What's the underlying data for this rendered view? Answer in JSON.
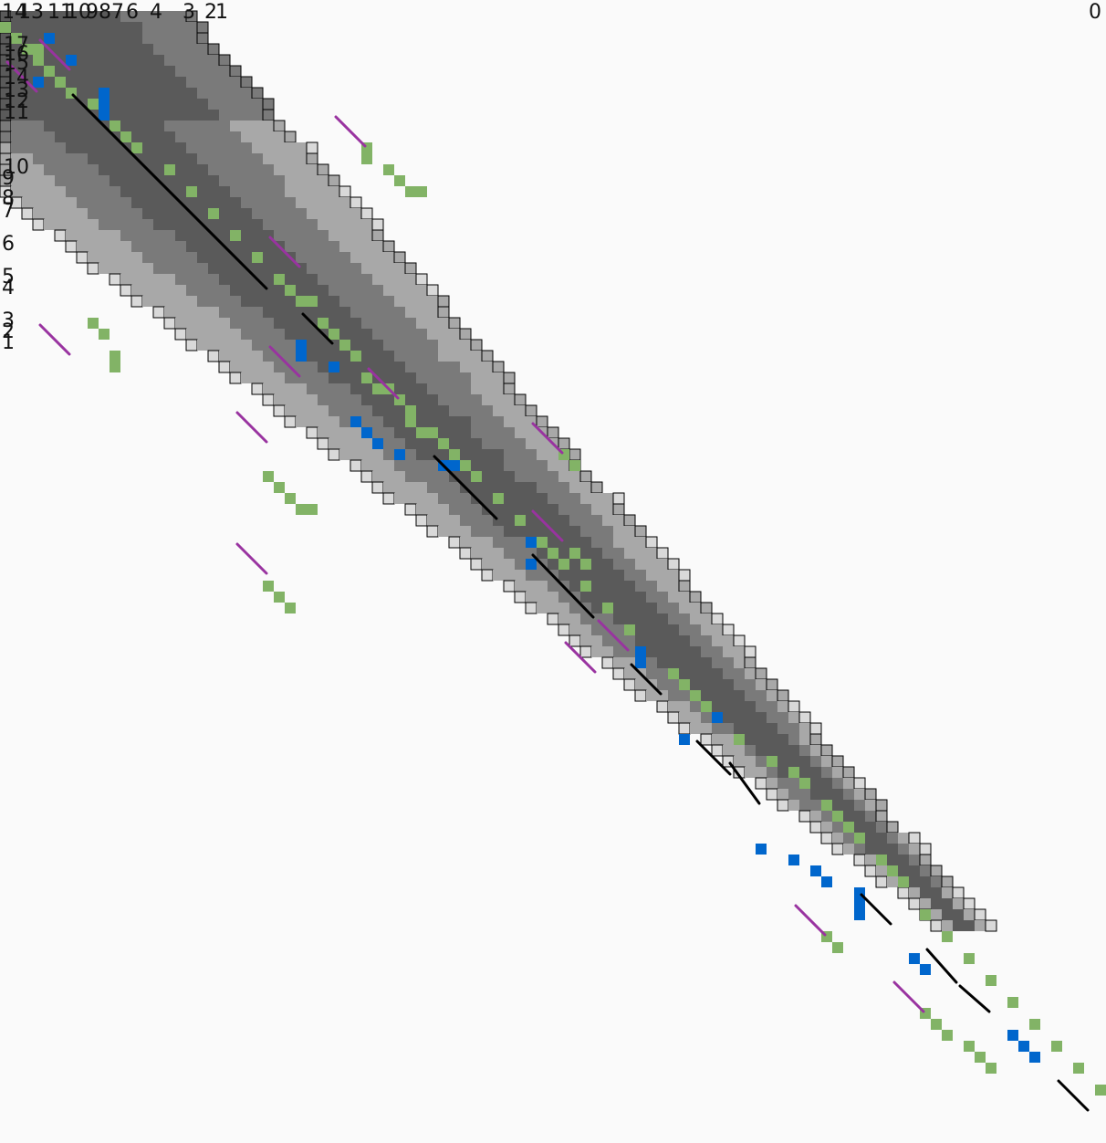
{
  "top_labels": [
    "14",
    "13",
    "11",
    "10",
    "9",
    "8",
    "7",
    "6",
    "4",
    "3",
    "2",
    "1",
    "0"
  ],
  "left_labels": [
    "17",
    "16",
    "15",
    "14",
    "13",
    "12",
    "11",
    "10",
    "9",
    "8",
    "7",
    "6",
    "5",
    "4",
    "3",
    "2",
    "1"
  ],
  "colors": {
    "background": "#fafafa",
    "grid_line": "#000000",
    "highlight_green": "#82b366",
    "highlight_blue": "#0066cc",
    "trace_black": "#000000",
    "trace_purple": "#9933a0",
    "shade_darkest": "#5a5a5a",
    "shade_dark": "#7a7a7a",
    "shade_mid": "#a8a8a8",
    "shade_light": "#d9d9d9",
    "shade_lightest": "#ececec"
  }
}
